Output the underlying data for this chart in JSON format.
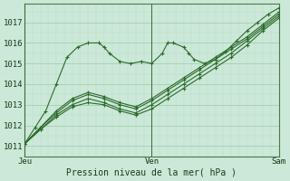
{
  "bg_color": "#cce8d8",
  "grid_major_color": "#99ccaa",
  "grid_minor_color": "#b8ddc8",
  "line_color": "#2d6b2d",
  "ylabel_text": "Pression niveau de la mer( hPa )",
  "x_ticks_labels": [
    "Jeu",
    "Ven",
    "Sam"
  ],
  "x_ticks_pos": [
    0,
    48,
    96
  ],
  "ylim": [
    1010.5,
    1017.9
  ],
  "yticks": [
    1011,
    1012,
    1013,
    1014,
    1015,
    1016,
    1017
  ],
  "total_hours": 96,
  "series": [
    {
      "x": [
        0,
        4,
        8,
        12,
        16,
        20,
        24,
        28,
        30,
        32,
        36,
        40,
        44,
        48,
        52,
        54,
        56,
        60,
        62,
        64,
        68,
        72,
        76,
        80,
        84,
        88,
        92,
        96
      ],
      "y": [
        1011.1,
        1011.9,
        1012.7,
        1014.0,
        1015.3,
        1015.8,
        1016.0,
        1016.0,
        1015.8,
        1015.5,
        1015.1,
        1015.0,
        1015.1,
        1015.0,
        1015.5,
        1016.0,
        1016.0,
        1015.8,
        1015.5,
        1015.2,
        1015.0,
        1015.2,
        1015.6,
        1016.1,
        1016.6,
        1017.0,
        1017.4,
        1017.7
      ]
    },
    {
      "x": [
        0,
        6,
        12,
        18,
        24,
        30,
        36,
        42,
        48,
        54,
        60,
        66,
        72,
        78,
        84,
        90,
        96
      ],
      "y": [
        1011.1,
        1011.8,
        1012.4,
        1012.9,
        1013.1,
        1013.0,
        1012.7,
        1012.5,
        1012.8,
        1013.3,
        1013.8,
        1014.3,
        1014.8,
        1015.3,
        1015.9,
        1016.6,
        1017.2
      ]
    },
    {
      "x": [
        0,
        6,
        12,
        18,
        24,
        30,
        36,
        42,
        48,
        54,
        60,
        66,
        72,
        78,
        84,
        90,
        96
      ],
      "y": [
        1011.1,
        1011.8,
        1012.5,
        1013.0,
        1013.3,
        1013.1,
        1012.8,
        1012.6,
        1013.0,
        1013.5,
        1014.0,
        1014.5,
        1015.0,
        1015.5,
        1016.1,
        1016.7,
        1017.3
      ]
    },
    {
      "x": [
        0,
        6,
        12,
        18,
        24,
        30,
        36,
        42,
        48,
        54,
        60,
        66,
        72,
        78,
        84,
        90,
        96
      ],
      "y": [
        1011.1,
        1011.9,
        1012.6,
        1013.2,
        1013.5,
        1013.3,
        1013.0,
        1012.8,
        1013.2,
        1013.7,
        1014.2,
        1014.7,
        1015.2,
        1015.7,
        1016.2,
        1016.8,
        1017.4
      ]
    },
    {
      "x": [
        0,
        6,
        12,
        18,
        24,
        30,
        36,
        42,
        48,
        54,
        60,
        66,
        72,
        78,
        84,
        90,
        96
      ],
      "y": [
        1011.1,
        1011.9,
        1012.7,
        1013.3,
        1013.6,
        1013.4,
        1013.1,
        1012.9,
        1013.3,
        1013.8,
        1014.3,
        1014.8,
        1015.3,
        1015.8,
        1016.3,
        1016.9,
        1017.5
      ]
    }
  ]
}
